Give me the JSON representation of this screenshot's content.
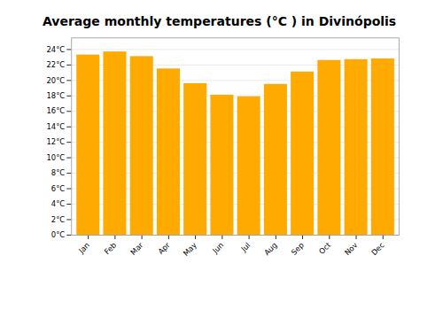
{
  "chart_data": {
    "type": "bar",
    "title": "Average monthly temperatures (°C ) in Divinópolis",
    "categories": [
      "Jan",
      "Feb",
      "Mar",
      "Apr",
      "May",
      "Jun",
      "Jul",
      "Aug",
      "Sep",
      "Oct",
      "Nov",
      "Dec"
    ],
    "values": [
      23.3,
      23.7,
      23.1,
      21.5,
      19.6,
      18.1,
      17.9,
      19.5,
      21.1,
      22.6,
      22.7,
      22.8
    ],
    "color": "#FFAA00",
    "ylim": [
      0,
      25.5
    ],
    "yticks": [
      {
        "value": 0,
        "label": "0°C"
      },
      {
        "value": 2,
        "label": "2°C"
      },
      {
        "value": 4,
        "label": "4°C"
      },
      {
        "value": 6,
        "label": "6°C"
      },
      {
        "value": 8,
        "label": "8°C"
      },
      {
        "value": 10,
        "label": "10°C"
      },
      {
        "value": 12,
        "label": "12°C"
      },
      {
        "value": 14,
        "label": "14°C"
      },
      {
        "value": 16,
        "label": "16°C"
      },
      {
        "value": 18,
        "label": "18°C"
      },
      {
        "value": 20,
        "label": "20°C"
      },
      {
        "value": 22,
        "label": "22°C"
      },
      {
        "value": 24,
        "label": "24°C"
      }
    ],
    "grid": true
  }
}
